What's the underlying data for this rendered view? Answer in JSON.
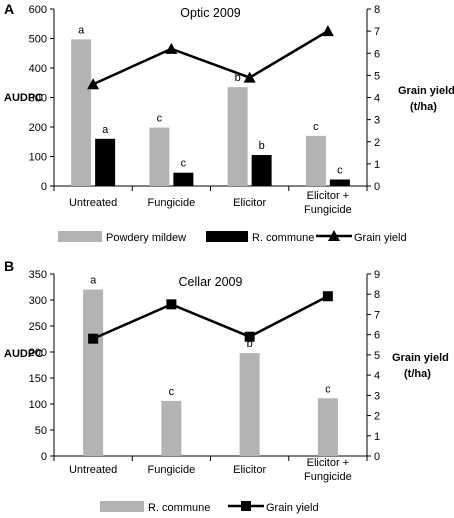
{
  "chart_data": [
    {
      "panel": "A",
      "type": "bar",
      "title": "Optic 2009",
      "ylabel": "AUDPC",
      "y2label_line1": "Grain yield",
      "y2label_line2": "(t/ha)",
      "categories": [
        "Untreated",
        "Fungicide",
        "Elicitor",
        "Elicitor +|Fungicide"
      ],
      "ylim": [
        0,
        600
      ],
      "yticks": [
        0,
        100,
        200,
        300,
        400,
        500,
        600
      ],
      "y2lim": [
        0,
        8
      ],
      "y2ticks": [
        0,
        1,
        2,
        3,
        4,
        5,
        6,
        7,
        8
      ],
      "series": [
        {
          "name": "Powdery mildew",
          "kind": "bar",
          "color": "#b3b3b3",
          "values": [
            497,
            198,
            335,
            170
          ],
          "labels": [
            "a",
            "c",
            "b",
            "c"
          ]
        },
        {
          "name": "R. commune",
          "kind": "bar",
          "color": "#000000",
          "values": [
            160,
            45,
            105,
            22
          ],
          "labels": [
            "a",
            "c",
            "b",
            "c"
          ]
        },
        {
          "name": "Grain yield",
          "kind": "line",
          "axis": "right",
          "marker": "triangle",
          "color": "#000000",
          "values": [
            4.6,
            6.2,
            4.9,
            7.0
          ]
        }
      ]
    },
    {
      "panel": "B",
      "type": "bar",
      "title": "Cellar 2009",
      "ylabel": "AUDPC",
      "y2label_line1": "Grain yield",
      "y2label_line2": "(t/ha)",
      "categories": [
        "Untreated",
        "Fungicide",
        "Elicitor",
        "Elicitor +|Fungicide"
      ],
      "ylim": [
        0,
        350
      ],
      "yticks": [
        0,
        50,
        100,
        150,
        200,
        250,
        300,
        350
      ],
      "y2lim": [
        0,
        9
      ],
      "y2ticks": [
        0,
        1,
        2,
        3,
        4,
        5,
        6,
        7,
        8,
        9
      ],
      "series": [
        {
          "name": "R. commune",
          "kind": "bar",
          "color": "#b3b3b3",
          "values": [
            320,
            106,
            198,
            111
          ],
          "labels": [
            "a",
            "c",
            "b",
            "c"
          ]
        },
        {
          "name": "Grain yield",
          "kind": "line",
          "axis": "right",
          "marker": "square",
          "color": "#000000",
          "values": [
            5.8,
            7.5,
            5.9,
            7.9
          ]
        }
      ]
    }
  ]
}
